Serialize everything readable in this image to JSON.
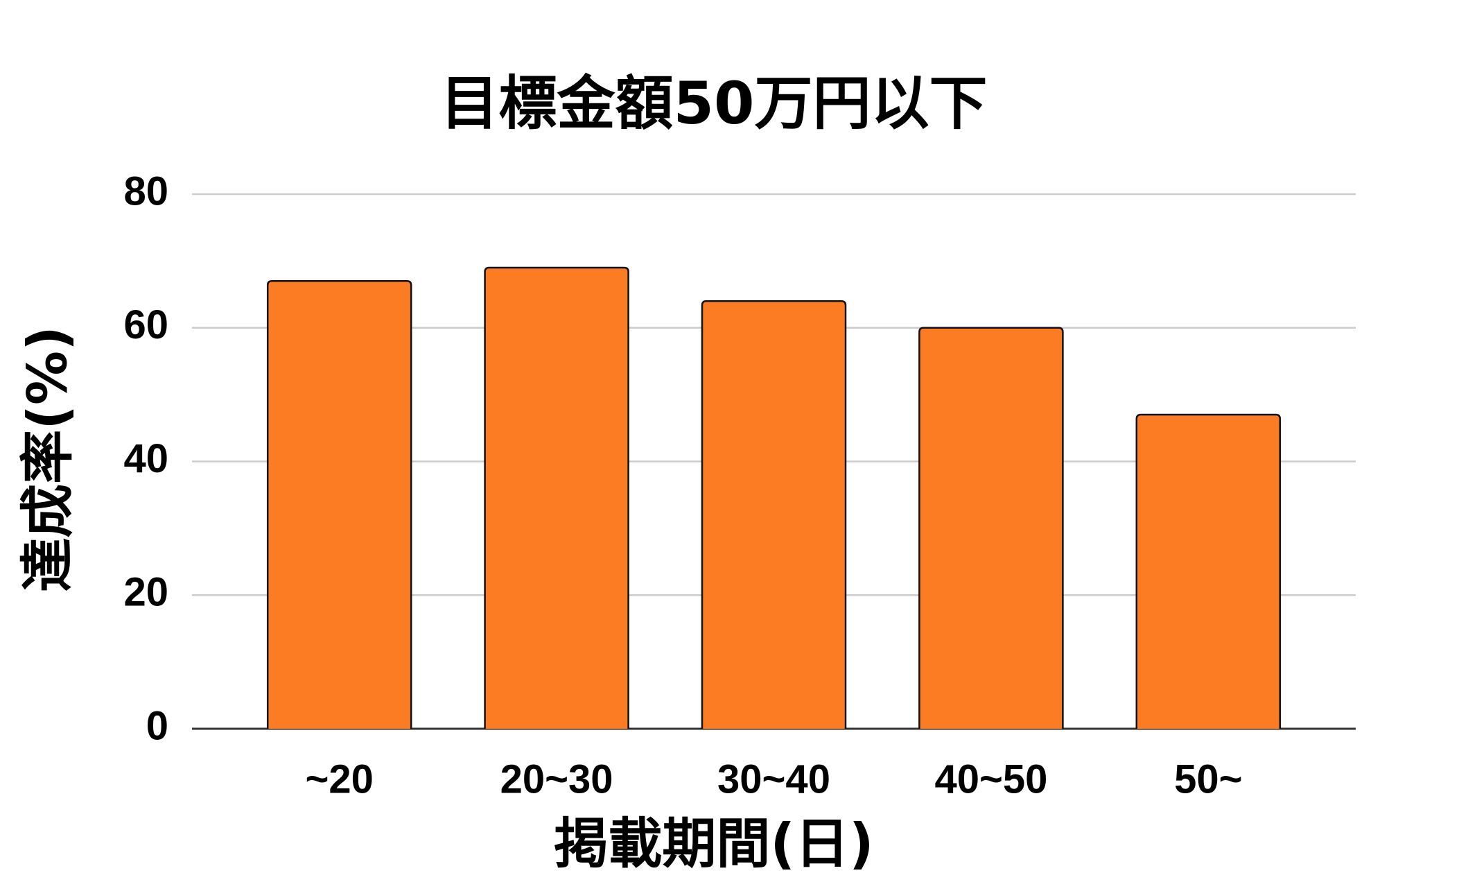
{
  "chart_data": {
    "type": "bar",
    "title": "目標金額50万円以下",
    "x_label": "掲載期間(日)",
    "y_label": "達成率(%)",
    "categories": [
      "~20",
      "20~30",
      "30~40",
      "40~50",
      "50~"
    ],
    "values": [
      67,
      69,
      64,
      60,
      47
    ],
    "color": "#fb7c22",
    "ylim": [
      0,
      80
    ],
    "yticks": [
      0,
      20,
      40,
      60,
      80
    ],
    "grid": true
  }
}
